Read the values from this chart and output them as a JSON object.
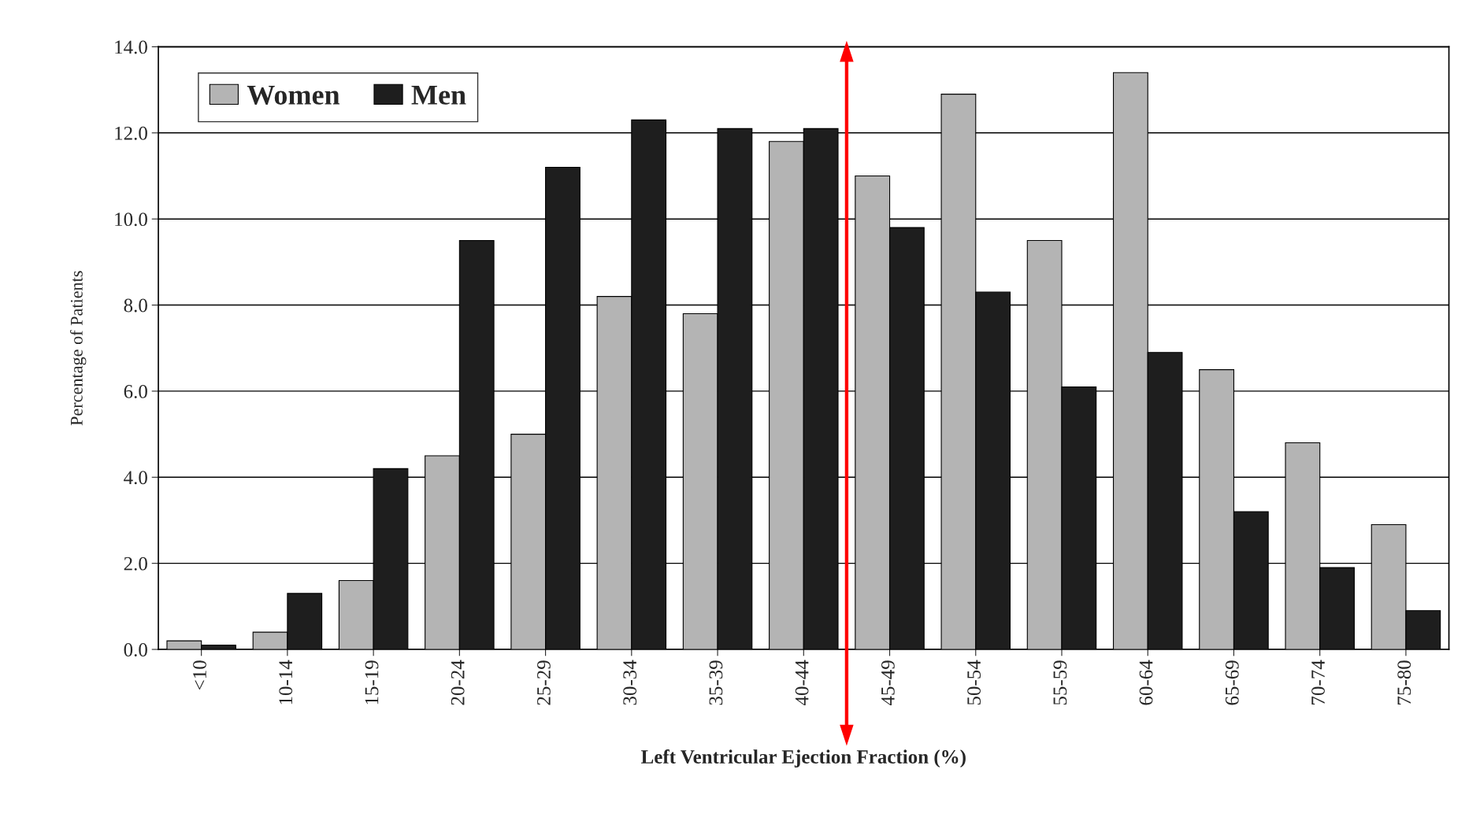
{
  "chart_data": {
    "type": "bar",
    "xlabel": "Left Ventricular Ejection Fraction (%)",
    "ylabel": "Percentage of Patients",
    "categories": [
      "<10",
      "10-14",
      "15-19",
      "20-24",
      "25-29",
      "30-34",
      "35-39",
      "40-44",
      "45-49",
      "50-54",
      "55-59",
      "60-64",
      "65-69",
      "70-74",
      "75-80"
    ],
    "series": [
      {
        "name": "Women",
        "color": "#b4b4b4",
        "values": [
          0.2,
          0.4,
          1.6,
          4.5,
          5.0,
          8.2,
          7.8,
          11.8,
          11.0,
          12.9,
          9.5,
          13.4,
          6.5,
          4.8,
          2.9
        ]
      },
      {
        "name": "Men",
        "color": "#1e1e1e",
        "values": [
          0.1,
          1.3,
          4.2,
          9.5,
          11.2,
          12.3,
          12.1,
          12.1,
          9.8,
          8.3,
          6.1,
          6.9,
          3.2,
          1.9,
          0.9
        ]
      }
    ],
    "ylim": [
      0,
      14
    ],
    "yticks": [
      {
        "value": 0,
        "label": "0.0"
      },
      {
        "value": 2,
        "label": "2.0"
      },
      {
        "value": 4,
        "label": "4.0"
      },
      {
        "value": 6,
        "label": "6.0"
      },
      {
        "value": 8,
        "label": "8.0"
      },
      {
        "value": 10,
        "label": "10.0"
      },
      {
        "value": 12,
        "label": "12.0"
      },
      {
        "value": 14,
        "label": "14.0"
      }
    ],
    "grid": "y",
    "legend": "top left"
  }
}
